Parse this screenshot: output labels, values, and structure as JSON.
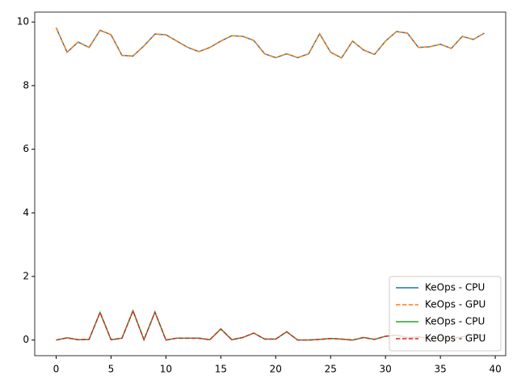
{
  "chart_data": {
    "type": "line",
    "x": [
      0,
      1,
      2,
      3,
      4,
      5,
      6,
      7,
      8,
      9,
      10,
      11,
      12,
      13,
      14,
      15,
      16,
      17,
      18,
      19,
      20,
      21,
      22,
      23,
      24,
      25,
      26,
      27,
      28,
      29,
      30,
      31,
      32,
      33,
      34,
      35,
      36,
      37,
      38,
      39
    ],
    "series": [
      {
        "name": "KeOps - CPU",
        "color": "#1f77b4",
        "linestyle": "solid",
        "values": [
          9.82,
          9.05,
          9.37,
          9.2,
          9.74,
          9.6,
          8.95,
          8.93,
          9.25,
          9.62,
          9.6,
          9.4,
          9.2,
          9.07,
          9.2,
          9.4,
          9.57,
          9.55,
          9.42,
          9.0,
          8.88,
          9.0,
          8.88,
          9.0,
          9.63,
          9.05,
          8.87,
          9.4,
          9.12,
          8.98,
          9.4,
          9.7,
          9.65,
          9.2,
          9.22,
          9.3,
          9.17,
          9.55,
          9.45,
          9.65
        ]
      },
      {
        "name": "KeOps - GPU",
        "color": "#ff7f0e",
        "linestyle": "dashed",
        "values": [
          9.82,
          9.05,
          9.37,
          9.2,
          9.74,
          9.6,
          8.95,
          8.93,
          9.25,
          9.62,
          9.6,
          9.4,
          9.2,
          9.07,
          9.2,
          9.4,
          9.57,
          9.55,
          9.42,
          9.0,
          8.88,
          9.0,
          8.88,
          9.0,
          9.63,
          9.05,
          8.87,
          9.4,
          9.12,
          8.98,
          9.4,
          9.7,
          9.65,
          9.2,
          9.22,
          9.3,
          9.17,
          9.55,
          9.45,
          9.65
        ]
      },
      {
        "name": "KeOps - CPU",
        "color": "#2ca02c",
        "linestyle": "solid",
        "values": [
          0.0,
          0.07,
          0.01,
          0.02,
          0.87,
          0.01,
          0.06,
          0.92,
          0.01,
          0.88,
          0.0,
          0.06,
          0.06,
          0.06,
          0.01,
          0.35,
          0.01,
          0.08,
          0.22,
          0.03,
          0.03,
          0.26,
          0.0,
          0.0,
          0.02,
          0.05,
          0.03,
          0.0,
          0.08,
          0.02,
          0.12,
          0.15,
          0.08,
          0.1,
          0.05,
          0.06,
          0.05,
          0.1,
          0.18,
          0.15
        ]
      },
      {
        "name": "KeOps - GPU",
        "color": "#d62728",
        "linestyle": "dashed",
        "values": [
          0.0,
          0.07,
          0.01,
          0.02,
          0.87,
          0.01,
          0.06,
          0.92,
          0.01,
          0.88,
          0.0,
          0.06,
          0.06,
          0.06,
          0.01,
          0.35,
          0.01,
          0.08,
          0.22,
          0.03,
          0.03,
          0.26,
          0.0,
          0.0,
          0.02,
          0.05,
          0.03,
          0.0,
          0.08,
          0.02,
          0.12,
          0.15,
          0.08,
          0.1,
          0.05,
          0.06,
          0.05,
          0.1,
          0.18,
          0.15
        ]
      }
    ],
    "xlim": [
      -1.95,
      40.95
    ],
    "xticks": [
      0,
      5,
      10,
      15,
      20,
      25,
      30,
      35,
      40
    ],
    "ylim": [
      -0.491,
      10.311
    ],
    "yticks": [
      0,
      2,
      4,
      6,
      8,
      10
    ],
    "legend": "lower right"
  }
}
